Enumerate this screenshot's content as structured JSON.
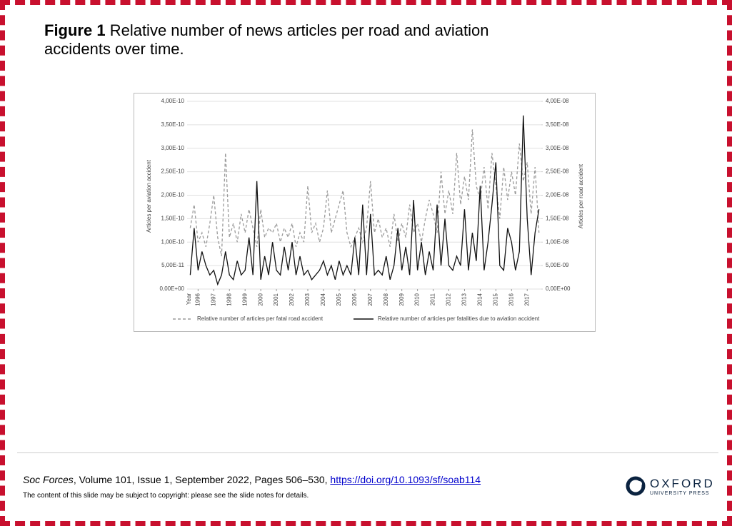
{
  "slide": {
    "title_label": "Figure 1",
    "title": "Relative number of news articles per road and aviation accidents over time.",
    "citation": {
      "journal": "Soc Forces",
      "details": ", Volume 101, Issue 1, September 2022, Pages 506–530, ",
      "doi": "https://doi.org/10.1093/sf/soab114"
    },
    "copyright": "The content of this slide may be subject to copyright: please see the slide notes for details.",
    "logo": {
      "name": "OXFORD",
      "sub": "UNIVERSITY PRESS"
    }
  },
  "chart_data": {
    "type": "line",
    "x_label": "Year",
    "y_label": "Articles per aviation accident",
    "y2_label": "Articles per road accident",
    "xlim": [
      1995.3,
      2017.9
    ],
    "xticks": [
      1996,
      1997,
      1998,
      1999,
      2000,
      2001,
      2002,
      2003,
      2004,
      2005,
      2006,
      2007,
      2008,
      2009,
      2010,
      2011,
      2012,
      2013,
      2014,
      2015,
      2016,
      2017
    ],
    "ylim": [
      0,
      4e-10
    ],
    "yticks": [
      {
        "value": 0,
        "label": "0,00E+00"
      },
      {
        "value": 5e-11,
        "label": "5,00E-11"
      },
      {
        "value": 1e-10,
        "label": "1,00E-10"
      },
      {
        "value": 1.5e-10,
        "label": "1,50E-10"
      },
      {
        "value": 2e-10,
        "label": "2,00E-10"
      },
      {
        "value": 2.5e-10,
        "label": "2,50E-10"
      },
      {
        "value": 3e-10,
        "label": "3,00E-10"
      },
      {
        "value": 3.5e-10,
        "label": "3,50E-10"
      },
      {
        "value": 4e-10,
        "label": "4,00E-10"
      }
    ],
    "y2lim": [
      0,
      4e-08
    ],
    "y2ticks": [
      {
        "value": 0,
        "label": "0,00E+00"
      },
      {
        "value": 5e-09,
        "label": "5,00E-09"
      },
      {
        "value": 1e-08,
        "label": "1,00E-08"
      },
      {
        "value": 1.5e-08,
        "label": "1,50E-08"
      },
      {
        "value": 2e-08,
        "label": "2,00E-08"
      },
      {
        "value": 2.5e-08,
        "label": "2,50E-08"
      },
      {
        "value": 3e-08,
        "label": "3,00E-08"
      },
      {
        "value": 3.5e-08,
        "label": "3,50E-08"
      },
      {
        "value": 4e-08,
        "label": "4,00E-08"
      }
    ],
    "grid": true,
    "x": [
      1995.5,
      1995.75,
      1996,
      1996.25,
      1996.5,
      1996.75,
      1997,
      1997.25,
      1997.5,
      1997.75,
      1998,
      1998.25,
      1998.5,
      1998.75,
      1999,
      1999.25,
      1999.5,
      1999.75,
      2000,
      2000.25,
      2000.5,
      2000.75,
      2001,
      2001.25,
      2001.5,
      2001.75,
      2002,
      2002.25,
      2002.5,
      2002.75,
      2003,
      2003.25,
      2003.5,
      2003.75,
      2004,
      2004.25,
      2004.5,
      2004.75,
      2005,
      2005.25,
      2005.5,
      2005.75,
      2006,
      2006.25,
      2006.5,
      2006.75,
      2007,
      2007.25,
      2007.5,
      2007.75,
      2008,
      2008.25,
      2008.5,
      2008.75,
      2009,
      2009.25,
      2009.5,
      2009.75,
      2010,
      2010.25,
      2010.5,
      2010.75,
      2011,
      2011.25,
      2011.5,
      2011.75,
      2012,
      2012.25,
      2012.5,
      2012.75,
      2013,
      2013.25,
      2013.5,
      2013.75,
      2014,
      2014.25,
      2014.5,
      2014.75,
      2015,
      2015.25,
      2015.5,
      2015.75,
      2016,
      2016.25,
      2016.5,
      2016.75,
      2017,
      2017.25,
      2017.5,
      2017.75
    ],
    "series": [
      {
        "name": "Relative number of articles per fatal road accident",
        "color": "#9a9a9a",
        "dash": "dashed",
        "values": [
          1.3e-10,
          1.8e-10,
          1e-10,
          1.2e-10,
          9e-11,
          1.4e-10,
          2e-10,
          1.1e-10,
          7e-11,
          2.9e-10,
          1.1e-10,
          1.4e-10,
          1e-10,
          1.6e-10,
          1.2e-10,
          1.7e-10,
          1.3e-10,
          9e-11,
          1.7e-10,
          1.1e-10,
          1.3e-10,
          1.2e-10,
          1.4e-10,
          1e-10,
          1.3e-10,
          1.1e-10,
          1.4e-10,
          9e-11,
          1.2e-10,
          1e-10,
          2.2e-10,
          1.2e-10,
          1.4e-10,
          1e-10,
          1.3e-10,
          2.1e-10,
          1.2e-10,
          1.5e-10,
          1.8e-10,
          2.1e-10,
          1.2e-10,
          9e-11,
          1.1e-10,
          1.3e-10,
          1e-10,
          1.3e-10,
          2.3e-10,
          1.2e-10,
          1.5e-10,
          1.1e-10,
          1.3e-10,
          9e-11,
          1.6e-10,
          1e-10,
          1.4e-10,
          1.1e-10,
          1.8e-10,
          1.2e-10,
          1.4e-10,
          1e-10,
          1.5e-10,
          1.9e-10,
          1.6e-10,
          1.2e-10,
          2.5e-10,
          1.6e-10,
          2.1e-10,
          1.6e-10,
          2.9e-10,
          1.8e-10,
          2.4e-10,
          1.9e-10,
          3.4e-10,
          2.2e-10,
          1.9e-10,
          2.6e-10,
          1.7e-10,
          2.9e-10,
          2.2e-10,
          1.5e-10,
          2.6e-10,
          1.9e-10,
          2.5e-10,
          2e-10,
          3.1e-10,
          2.3e-10,
          2.7e-10,
          1.6e-10,
          2.6e-10,
          1.2e-10
        ]
      },
      {
        "name": "Relative number of articles per fatalities due to aviation accident",
        "color": "#111111",
        "dash": "solid",
        "axis": "y2",
        "values": [
          3e-09,
          1.3e-08,
          4e-09,
          8e-09,
          5e-09,
          3e-09,
          4e-09,
          1e-09,
          3e-09,
          8e-09,
          3e-09,
          2e-09,
          6e-09,
          3e-09,
          4e-09,
          1.1e-08,
          3e-09,
          2.3e-08,
          2e-09,
          7e-09,
          3e-09,
          1e-08,
          4e-09,
          3e-09,
          9e-09,
          4e-09,
          1e-08,
          3e-09,
          7e-09,
          3e-09,
          4e-09,
          2e-09,
          3e-09,
          4e-09,
          6e-09,
          3e-09,
          5e-09,
          2e-09,
          6e-09,
          3e-09,
          5e-09,
          3e-09,
          1.1e-08,
          3e-09,
          1.8e-08,
          3e-09,
          1.6e-08,
          3e-09,
          4e-09,
          3e-09,
          7e-09,
          2e-09,
          5e-09,
          1.3e-08,
          4e-09,
          9e-09,
          3e-09,
          1.9e-08,
          4e-09,
          1e-08,
          3e-09,
          8e-09,
          4e-09,
          1.8e-08,
          5e-09,
          1.5e-08,
          5e-09,
          4e-09,
          7e-09,
          5e-09,
          1.7e-08,
          4e-09,
          1.2e-08,
          6e-09,
          2.2e-08,
          4e-09,
          1e-08,
          1.8e-08,
          2.7e-08,
          5e-09,
          4e-09,
          1.3e-08,
          1e-08,
          4e-09,
          8e-09,
          3.7e-08,
          1.5e-08,
          3e-09,
          1.2e-08,
          1.7e-08
        ]
      }
    ]
  }
}
